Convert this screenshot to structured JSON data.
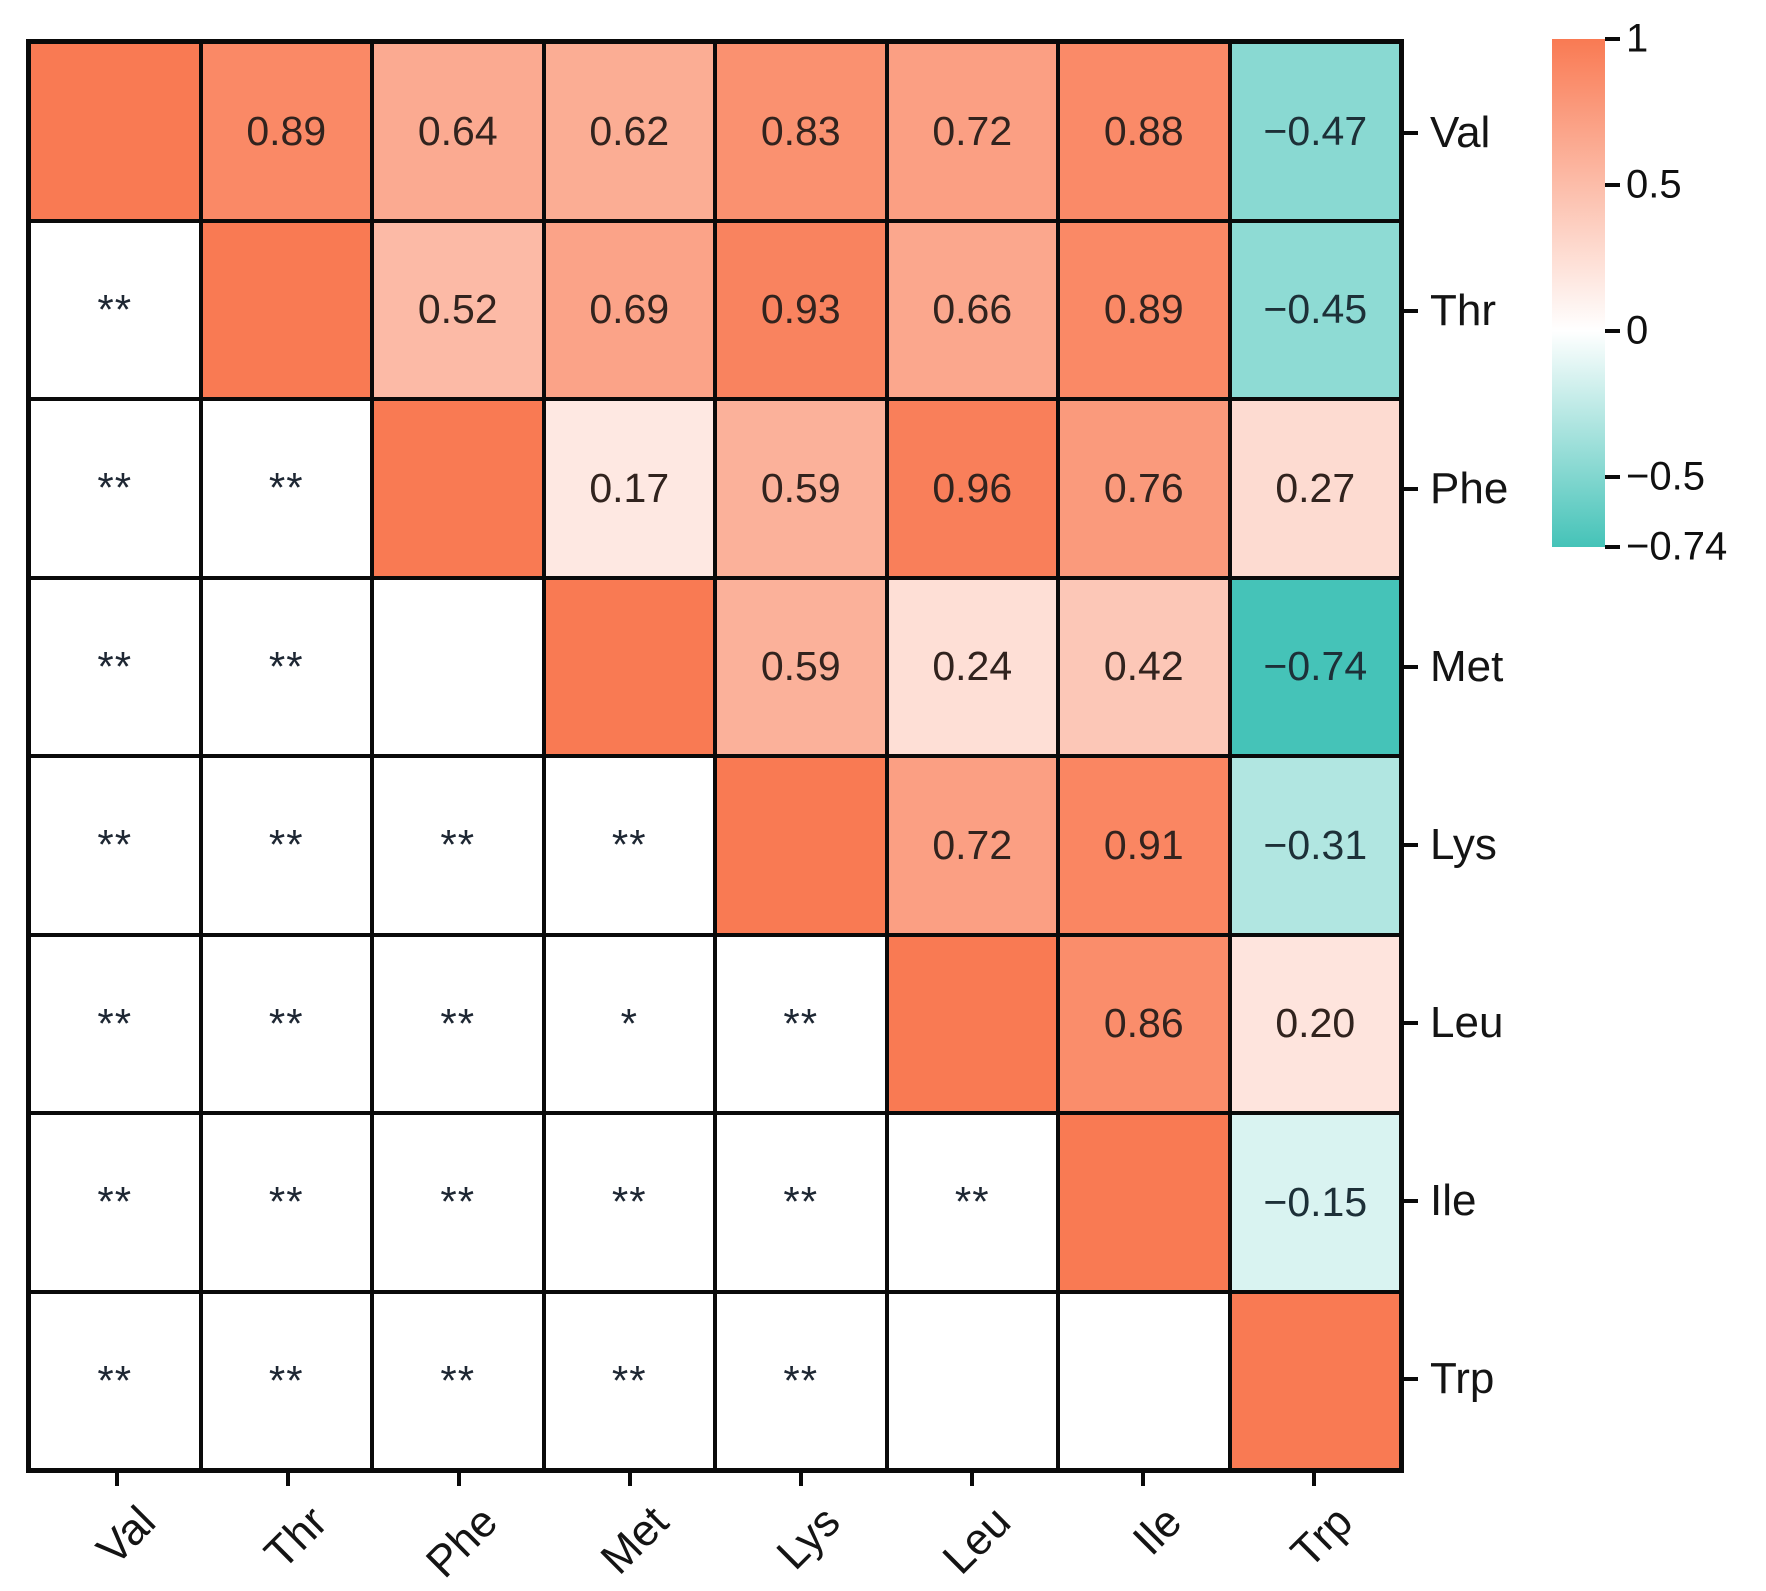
{
  "chart_data": {
    "type": "heatmap",
    "categories": [
      "Val",
      "Thr",
      "Phe",
      "Met",
      "Lys",
      "Leu",
      "Ile",
      "Trp"
    ],
    "values": [
      [
        1,
        0.89,
        0.64,
        0.62,
        0.83,
        0.72,
        0.88,
        -0.47
      ],
      [
        null,
        1,
        0.52,
        0.69,
        0.93,
        0.66,
        0.89,
        -0.45
      ],
      [
        null,
        null,
        1,
        0.17,
        0.59,
        0.96,
        0.76,
        0.27
      ],
      [
        null,
        null,
        null,
        1,
        0.59,
        0.24,
        0.42,
        -0.74
      ],
      [
        null,
        null,
        null,
        null,
        1,
        0.72,
        0.91,
        -0.31
      ],
      [
        null,
        null,
        null,
        null,
        null,
        1,
        0.86,
        0.2
      ],
      [
        null,
        null,
        null,
        null,
        null,
        null,
        1,
        -0.15
      ],
      [
        null,
        null,
        null,
        null,
        null,
        null,
        null,
        1
      ]
    ],
    "value_labels": [
      [
        "",
        "0.89",
        "0.64",
        "0.62",
        "0.83",
        "0.72",
        "0.88",
        "−0.47"
      ],
      [
        "",
        "",
        "0.52",
        "0.69",
        "0.93",
        "0.66",
        "0.89",
        "−0.45"
      ],
      [
        "",
        "",
        "",
        "0.17",
        "0.59",
        "0.96",
        "0.76",
        "0.27"
      ],
      [
        "",
        "",
        "",
        "",
        "0.59",
        "0.24",
        "0.42",
        "−0.74"
      ],
      [
        "",
        "",
        "",
        "",
        "",
        "0.72",
        "0.91",
        "−0.31"
      ],
      [
        "",
        "",
        "",
        "",
        "",
        "",
        "0.86",
        "0.20"
      ],
      [
        "",
        "",
        "",
        "",
        "",
        "",
        "",
        "−0.15"
      ],
      [
        "",
        "",
        "",
        "",
        "",
        "",
        "",
        ""
      ]
    ],
    "significance": [
      [
        "",
        "",
        "",
        "",
        "",
        "",
        "",
        ""
      ],
      [
        "**",
        "",
        "",
        "",
        "",
        "",
        "",
        ""
      ],
      [
        "**",
        "**",
        "",
        "",
        "",
        "",
        "",
        ""
      ],
      [
        "**",
        "**",
        "",
        "",
        "",
        "",
        "",
        ""
      ],
      [
        "**",
        "**",
        "**",
        "**",
        "",
        "",
        "",
        ""
      ],
      [
        "**",
        "**",
        "**",
        "*",
        "**",
        "",
        "",
        ""
      ],
      [
        "**",
        "**",
        "**",
        "**",
        "**",
        "**",
        "",
        ""
      ],
      [
        "**",
        "**",
        "**",
        "**",
        "**",
        "",
        "",
        ""
      ]
    ],
    "diagonal_value": 1,
    "colorbar": {
      "tick_labels": [
        "1",
        "0.5",
        "0",
        "−0.5",
        "−0.74"
      ],
      "tick_values": [
        1,
        0.5,
        0,
        -0.5,
        -0.74
      ],
      "max_value": 1,
      "min_value": -0.74,
      "positive_color": "#F97A53",
      "zero_color": "#FFFFFF",
      "negative_color": "#45C3B8"
    },
    "grid": true,
    "legend_position": "right"
  }
}
